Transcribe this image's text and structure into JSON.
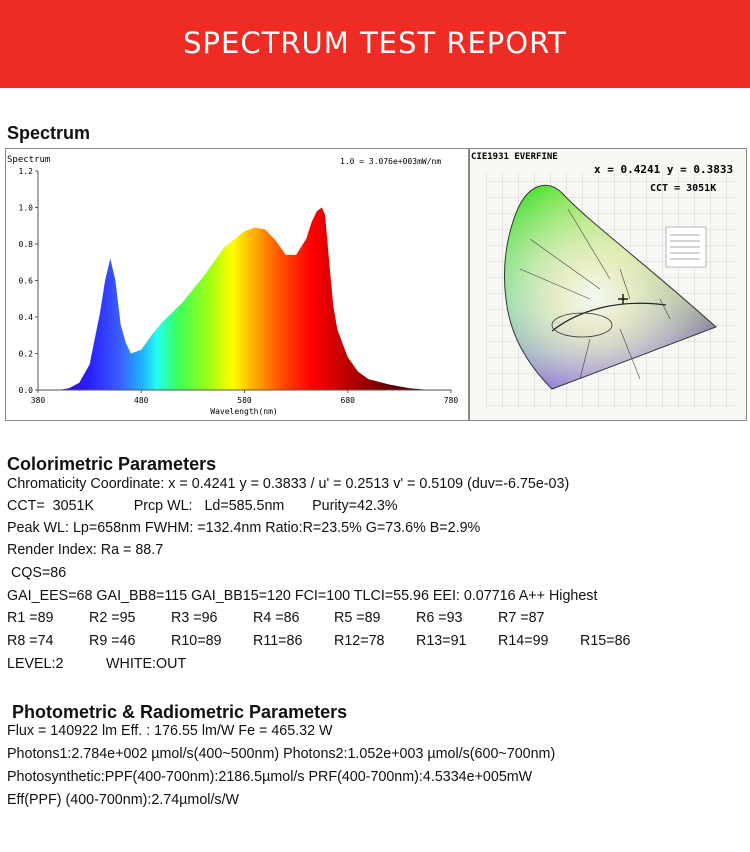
{
  "header": {
    "title": "SPECTRUM TEST REPORT"
  },
  "spectrum_section": {
    "title": "Spectrum"
  },
  "spectrum_chart": {
    "label": "Spectrum",
    "scale_note": "1.0 = 3.076e+003mW/nm",
    "xlabel": "Wavelength(nm)"
  },
  "chart_data": {
    "type": "area",
    "title": "Spectrum",
    "xlabel": "Wavelength(nm)",
    "ylabel": "",
    "xlim": [
      380,
      780
    ],
    "ylim": [
      0,
      1.2
    ],
    "x_ticks": [
      "380",
      "480",
      "580",
      "680",
      "780"
    ],
    "y_ticks": [
      "0.0",
      "0.2",
      "0.4",
      "0.6",
      "0.8",
      "1.0",
      "1.2"
    ],
    "grid": false,
    "series": [
      {
        "x": [
          380,
          400,
          410,
          420,
          430,
          440,
          445,
          450,
          455,
          460,
          465,
          470,
          480,
          490,
          500,
          520,
          540,
          560,
          580,
          590,
          600,
          610,
          620,
          630,
          640,
          645,
          650,
          655,
          658,
          662,
          666,
          670,
          680,
          690,
          700,
          720,
          740,
          760,
          780
        ],
        "values": [
          0.0,
          0.0,
          0.01,
          0.04,
          0.14,
          0.42,
          0.6,
          0.72,
          0.6,
          0.36,
          0.26,
          0.2,
          0.22,
          0.3,
          0.37,
          0.48,
          0.62,
          0.78,
          0.87,
          0.89,
          0.88,
          0.82,
          0.74,
          0.74,
          0.83,
          0.92,
          0.98,
          1.0,
          0.96,
          0.7,
          0.46,
          0.33,
          0.18,
          0.1,
          0.06,
          0.03,
          0.01,
          0.0,
          0.0
        ]
      }
    ]
  },
  "cie_chart": {
    "title": "CIE1931  EVERFINE",
    "coords": "x = 0.4241  y = 0.3833",
    "cct": "CCT = 3051K"
  },
  "colorimetric": {
    "title": "Colorimetric Parameters",
    "lines": [
      "Chromaticity Coordinate: x = 0.4241 y = 0.3833 / u' = 0.2513 v' = 0.5109 (duv=-6.75e-03)",
      "CCT=  3051K          Prcp WL:   Ld=585.5nm       Purity=42.3%",
      "Peak WL:  Lp=658nm  FWHM:   =132.4nm  Ratio:R=23.5% G=73.6% B=2.9%",
      "Render Index: Ra = 88.7",
      " CQS=86",
      "GAI_EES=68 GAI_BB8=115 GAI_BB15=120 FCI=100 TLCI=55.96 EEI: 0.07716 A++ Highest"
    ],
    "r_row1": [
      "R1 =89",
      "R2 =95",
      "R3 =96",
      "R4 =86",
      "R5 =89",
      "R6 =93",
      "R7 =87"
    ],
    "r_row2": [
      "R8 =74",
      "R9 =46",
      "R10=89",
      "R11=86",
      "R12=78",
      "R13=91",
      "R14=99",
      "R15=86"
    ],
    "level": "LEVEL:2",
    "white": "WHITE:OUT"
  },
  "photometric": {
    "title": "Photometric & Radiometric Parameters",
    "lines": [
      "Flux  = 140922 lm   Eff. : 176.55 lm/W  Fe  = 465.32 W",
      "Photons1:2.784e+002 µmol/s(400~500nm) Photons2:1.052e+003 µmol/s(600~700nm)",
      "Photosynthetic:PPF(400-700nm):2186.5µmol/s PRF(400-700nm):4.5334e+005mW",
      "Eff(PPF) (400-700nm):2.74µmol/s/W"
    ]
  },
  "colors": {
    "banner": "#ee2b24"
  }
}
